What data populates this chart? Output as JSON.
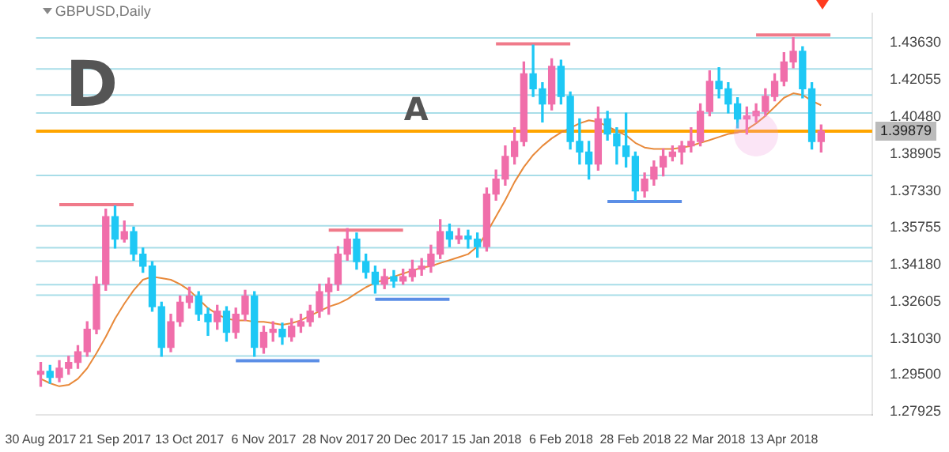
{
  "chart_data": {
    "type": "candlestick",
    "title": "GBPUSD,Daily",
    "annotations": [
      "D",
      "A"
    ],
    "categories": [
      "30 Aug 2017",
      null,
      null,
      null,
      null,
      null,
      null,
      null,
      "21 Sep 2017",
      null,
      null,
      null,
      null,
      null,
      null,
      null,
      "13 Oct 2017",
      null,
      null,
      null,
      null,
      null,
      null,
      null,
      "6 Nov 2017",
      null,
      null,
      null,
      null,
      null,
      null,
      null,
      "28 Nov 2017",
      null,
      null,
      null,
      null,
      null,
      null,
      null,
      "20 Dec 2017",
      null,
      null,
      null,
      null,
      null,
      null,
      null,
      "15 Jan 2018",
      null,
      null,
      null,
      null,
      null,
      null,
      null,
      "6 Feb 2018",
      null,
      null,
      null,
      null,
      null,
      null,
      null,
      "28 Feb 2018",
      null,
      null,
      null,
      null,
      null,
      null,
      null,
      "22 Mar 2018",
      null,
      null,
      null,
      null,
      null,
      null,
      null,
      "13 Apr 2018",
      null,
      null,
      null,
      null,
      null,
      null,
      null,
      null,
      null
    ],
    "ohlc": [
      [
        1.2952,
        1.3003,
        1.2901,
        1.2965
      ],
      [
        1.2965,
        1.299,
        1.2914,
        1.2939
      ],
      [
        1.2939,
        1.301,
        1.292,
        1.2978
      ],
      [
        1.2978,
        1.3029,
        1.2952,
        1.3003
      ],
      [
        1.3003,
        1.3074,
        1.2978,
        1.3048
      ],
      [
        1.3048,
        1.3176,
        1.3029,
        1.3144
      ],
      [
        1.3144,
        1.3368,
        1.3125,
        1.3336
      ],
      [
        1.3336,
        1.3656,
        1.331,
        1.3624
      ],
      [
        1.3624,
        1.3669,
        1.349,
        1.3528
      ],
      [
        1.3528,
        1.3605,
        1.3515,
        1.356
      ],
      [
        1.356,
        1.3579,
        1.3438,
        1.3464
      ],
      [
        1.3464,
        1.349,
        1.3387,
        1.3413
      ],
      [
        1.3413,
        1.3432,
        1.3221,
        1.324
      ],
      [
        1.324,
        1.3259,
        1.3029,
        1.3067
      ],
      [
        1.3067,
        1.3208,
        1.3048,
        1.3176
      ],
      [
        1.3176,
        1.3285,
        1.3157,
        1.3259
      ],
      [
        1.3259,
        1.3323,
        1.3234,
        1.3285
      ],
      [
        1.3285,
        1.3304,
        1.3182,
        1.3208
      ],
      [
        1.3208,
        1.3234,
        1.3118,
        1.3176
      ],
      [
        1.3176,
        1.3246,
        1.3144,
        1.3221
      ],
      [
        1.3221,
        1.324,
        1.3093,
        1.3131
      ],
      [
        1.3131,
        1.3234,
        1.3106,
        1.3208
      ],
      [
        1.3208,
        1.331,
        1.3182,
        1.3285
      ],
      [
        1.3285,
        1.3304,
        1.3029,
        1.3067
      ],
      [
        1.3067,
        1.3157,
        1.3042,
        1.3131
      ],
      [
        1.3131,
        1.3176,
        1.3093,
        1.3144
      ],
      [
        1.3144,
        1.317,
        1.308,
        1.3112
      ],
      [
        1.3112,
        1.3189,
        1.3093,
        1.3157
      ],
      [
        1.3157,
        1.3208,
        1.3131,
        1.3176
      ],
      [
        1.3176,
        1.3246,
        1.3157,
        1.3221
      ],
      [
        1.3221,
        1.3336,
        1.3195,
        1.3304
      ],
      [
        1.3304,
        1.3362,
        1.3208,
        1.3336
      ],
      [
        1.3336,
        1.3496,
        1.331,
        1.3464
      ],
      [
        1.3464,
        1.3573,
        1.3438,
        1.3528
      ],
      [
        1.3528,
        1.3554,
        1.34,
        1.3432
      ],
      [
        1.3432,
        1.3464,
        1.3362,
        1.3387
      ],
      [
        1.3387,
        1.3413,
        1.3298,
        1.3336
      ],
      [
        1.3336,
        1.34,
        1.3317,
        1.3368
      ],
      [
        1.3368,
        1.3394,
        1.3323,
        1.3349
      ],
      [
        1.3349,
        1.34,
        1.3336,
        1.3368
      ],
      [
        1.3368,
        1.3438,
        1.3349,
        1.34
      ],
      [
        1.34,
        1.3445,
        1.3374,
        1.3413
      ],
      [
        1.3413,
        1.3502,
        1.3387,
        1.3464
      ],
      [
        1.3464,
        1.3611,
        1.3445,
        1.356
      ],
      [
        1.356,
        1.3592,
        1.3496,
        1.3528
      ],
      [
        1.3528,
        1.3573,
        1.3509,
        1.3541
      ],
      [
        1.3541,
        1.3566,
        1.349,
        1.3528
      ],
      [
        1.3528,
        1.3554,
        1.3451,
        1.3496
      ],
      [
        1.3496,
        1.3746,
        1.3477,
        1.372
      ],
      [
        1.372,
        1.3822,
        1.3694,
        1.3784
      ],
      [
        1.3784,
        1.3925,
        1.3758,
        1.388
      ],
      [
        1.388,
        1.4002,
        1.3848,
        1.3944
      ],
      [
        1.3944,
        1.4283,
        1.3925,
        1.4232
      ],
      [
        1.4232,
        1.4354,
        1.4136,
        1.4168
      ],
      [
        1.4168,
        1.4194,
        1.4027,
        1.4104
      ],
      [
        1.4104,
        1.4296,
        1.4078,
        1.4264
      ],
      [
        1.4264,
        1.429,
        1.4104,
        1.4136
      ],
      [
        1.4136,
        1.4155,
        1.3912,
        1.3944
      ],
      [
        1.3944,
        1.404,
        1.3848,
        1.3899
      ],
      [
        1.3899,
        1.3944,
        1.3784,
        1.3848
      ],
      [
        1.3848,
        1.4091,
        1.3822,
        1.404
      ],
      [
        1.404,
        1.4072,
        1.395,
        1.3976
      ],
      [
        1.3976,
        1.4002,
        1.3848,
        1.3925
      ],
      [
        1.3925,
        1.4065,
        1.3835,
        1.388
      ],
      [
        1.388,
        1.3899,
        1.3694,
        1.3733
      ],
      [
        1.3733,
        1.381,
        1.3707,
        1.3784
      ],
      [
        1.3784,
        1.3861,
        1.3758,
        1.3835
      ],
      [
        1.3835,
        1.3912,
        1.3797,
        1.388
      ],
      [
        1.388,
        1.3925,
        1.3861,
        1.3899
      ],
      [
        1.3899,
        1.3944,
        1.3848,
        1.3925
      ],
      [
        1.3925,
        1.4002,
        1.3899,
        1.3944
      ],
      [
        1.3944,
        1.4104,
        1.3925,
        1.4072
      ],
      [
        1.4072,
        1.4245,
        1.4053,
        1.42
      ],
      [
        1.42,
        1.4258,
        1.413,
        1.4168
      ],
      [
        1.4168,
        1.4194,
        1.4066,
        1.4104
      ],
      [
        1.4104,
        1.413,
        1.4002,
        1.404
      ],
      [
        1.404,
        1.4091,
        1.3976,
        1.4053
      ],
      [
        1.4053,
        1.4104,
        1.4027,
        1.4072
      ],
      [
        1.4072,
        1.4168,
        1.4053,
        1.4136
      ],
      [
        1.4136,
        1.4232,
        1.4117,
        1.42
      ],
      [
        1.42,
        1.4322,
        1.4181,
        1.4283
      ],
      [
        1.4283,
        1.4386,
        1.4258,
        1.4328
      ],
      [
        1.4328,
        1.4347,
        1.413,
        1.4168
      ],
      [
        1.4168,
        1.4194,
        1.3912,
        1.3944
      ],
      [
        1.3944,
        1.4014,
        1.3899,
        1.3988
      ],
      null,
      null,
      null,
      null,
      null
    ],
    "colors": [
      "#f06eaa",
      "#1ec8f5",
      "#f06eaa",
      "#f06eaa",
      "#f06eaa",
      "#f06eaa",
      "#f06eaa",
      "#f06eaa",
      "#1ec8f5",
      "#f06eaa",
      "#1ec8f5",
      "#1ec8f5",
      "#1ec8f5",
      "#1ec8f5",
      "#f06eaa",
      "#f06eaa",
      "#f06eaa",
      "#1ec8f5",
      "#1ec8f5",
      "#f06eaa",
      "#1ec8f5",
      "#f06eaa",
      "#f06eaa",
      "#1ec8f5",
      "#f06eaa",
      "#f06eaa",
      "#1ec8f5",
      "#f06eaa",
      "#f06eaa",
      "#f06eaa",
      "#f06eaa",
      "#f06eaa",
      "#f06eaa",
      "#f06eaa",
      "#1ec8f5",
      "#1ec8f5",
      "#1ec8f5",
      "#f06eaa",
      "#1ec8f5",
      "#f06eaa",
      "#f06eaa",
      "#f06eaa",
      "#f06eaa",
      "#f06eaa",
      "#1ec8f5",
      "#f06eaa",
      "#1ec8f5",
      "#1ec8f5",
      "#f06eaa",
      "#f06eaa",
      "#f06eaa",
      "#f06eaa",
      "#f06eaa",
      "#1ec8f5",
      "#1ec8f5",
      "#f06eaa",
      "#1ec8f5",
      "#1ec8f5",
      "#1ec8f5",
      "#1ec8f5",
      "#f06eaa",
      "#1ec8f5",
      "#1ec8f5",
      "#1ec8f5",
      "#1ec8f5",
      "#f06eaa",
      "#f06eaa",
      "#f06eaa",
      "#f06eaa",
      "#f06eaa",
      "#f06eaa",
      "#f06eaa",
      "#f06eaa",
      "#1ec8f5",
      "#1ec8f5",
      "#1ec8f5",
      "#f06eaa",
      "#f06eaa",
      "#f06eaa",
      "#f06eaa",
      "#f06eaa",
      "#f06eaa",
      "#1ec8f5",
      "#1ec8f5",
      "#f06eaa",
      null,
      null,
      null,
      null,
      null
    ],
    "series": [
      {
        "type": "line",
        "color": "#e8893a",
        "values": [
          1.2933,
          1.2914,
          1.2901,
          1.2907,
          1.2933,
          1.2978,
          1.3042,
          1.3112,
          1.3189,
          1.3253,
          1.331,
          1.3355,
          1.3368,
          1.3362,
          1.3355,
          1.3336,
          1.331,
          1.3272,
          1.3234,
          1.3208,
          1.3189,
          1.3182,
          1.3182,
          1.3176,
          1.3176,
          1.317,
          1.3163,
          1.317,
          1.3182,
          1.3202,
          1.3221,
          1.324,
          1.3253,
          1.3272,
          1.3298,
          1.3323,
          1.3342,
          1.3355,
          1.3368,
          1.3381,
          1.3394,
          1.3406,
          1.3413,
          1.3426,
          1.3438,
          1.3451,
          1.3464,
          1.3496,
          1.3554,
          1.3624,
          1.3694,
          1.3771,
          1.3835,
          1.3886,
          1.3925,
          1.3957,
          1.3982,
          1.4002,
          1.4021,
          1.4034,
          1.4027,
          1.4008,
          1.3989,
          1.397,
          1.3938,
          1.3918,
          1.3912,
          1.3912,
          1.3912,
          1.3918,
          1.3925,
          1.3938,
          1.395,
          1.3963,
          1.3976,
          1.3982,
          1.3995,
          1.4021,
          1.4053,
          1.4091,
          1.413,
          1.4149,
          1.4142,
          1.4117,
          1.4098,
          null,
          null,
          null,
          null,
          null
        ]
      },
      {
        "type": "line",
        "color": "#f07a8a",
        "values": [
          null,
          null,
          1.3675,
          1.3675,
          1.3675,
          1.3675,
          1.3675,
          1.3675,
          1.3675,
          1.3675,
          1.3675,
          null,
          null,
          null,
          null,
          null,
          null,
          null,
          null,
          null,
          null,
          null,
          null,
          null,
          null,
          null,
          null,
          null,
          null,
          null,
          null,
          null,
          null,
          null,
          null,
          null,
          null,
          null,
          null,
          null,
          null,
          null,
          null,
          null,
          null,
          null,
          null,
          null,
          null,
          null,
          null,
          null,
          null,
          null,
          null,
          null,
          null,
          null,
          null,
          null,
          null,
          null,
          null,
          null,
          null,
          null,
          null,
          null,
          null,
          null,
          null,
          null,
          null,
          null,
          null,
          null,
          null,
          null,
          null,
          null,
          null,
          null,
          null,
          null,
          null,
          null,
          null,
          null,
          null,
          null
        ]
      },
      {
        "type": "line",
        "color": "#f07a8a",
        "values": [
          null,
          null,
          null,
          null,
          null,
          null,
          null,
          null,
          null,
          null,
          null,
          null,
          null,
          null,
          null,
          null,
          null,
          null,
          null,
          null,
          null,
          null,
          null,
          null,
          null,
          null,
          null,
          null,
          null,
          null,
          null,
          1.3566,
          1.3566,
          1.3566,
          1.3566,
          1.3566,
          1.3566,
          1.3566,
          1.3566,
          1.3566,
          null,
          null,
          null,
          null,
          null,
          null,
          null,
          null,
          null,
          null,
          null,
          null,
          null,
          null,
          null,
          null,
          null,
          null,
          null,
          null,
          null,
          null,
          null,
          null,
          null,
          null,
          null,
          null,
          null,
          null,
          null,
          null,
          null,
          null,
          null,
          null,
          null,
          null,
          null,
          null,
          null,
          null,
          null,
          null,
          null,
          null,
          null,
          null,
          null,
          null
        ]
      },
      {
        "type": "line",
        "color": "#f07a8a",
        "values": [
          null,
          null,
          null,
          null,
          null,
          null,
          null,
          null,
          null,
          null,
          null,
          null,
          null,
          null,
          null,
          null,
          null,
          null,
          null,
          null,
          null,
          null,
          null,
          null,
          null,
          null,
          null,
          null,
          null,
          null,
          null,
          null,
          null,
          null,
          null,
          null,
          null,
          null,
          null,
          null,
          null,
          null,
          null,
          null,
          null,
          null,
          null,
          null,
          null,
          1.436,
          1.436,
          1.436,
          1.436,
          1.436,
          1.436,
          1.436,
          1.436,
          1.436,
          null,
          null,
          null,
          null,
          null,
          null,
          null,
          null,
          null,
          null,
          null,
          null,
          null,
          null,
          null,
          null,
          null,
          null,
          null,
          null,
          null,
          null,
          null,
          null,
          null,
          null,
          null,
          null,
          null,
          null,
          null,
          null
        ]
      },
      {
        "type": "line",
        "color": "#f07a8a",
        "values": [
          null,
          null,
          null,
          null,
          null,
          null,
          null,
          null,
          null,
          null,
          null,
          null,
          null,
          null,
          null,
          null,
          null,
          null,
          null,
          null,
          null,
          null,
          null,
          null,
          null,
          null,
          null,
          null,
          null,
          null,
          null,
          null,
          null,
          null,
          null,
          null,
          null,
          null,
          null,
          null,
          null,
          null,
          null,
          null,
          null,
          null,
          null,
          null,
          null,
          null,
          null,
          null,
          null,
          null,
          null,
          null,
          null,
          null,
          null,
          null,
          null,
          null,
          null,
          null,
          null,
          null,
          null,
          null,
          null,
          null,
          null,
          null,
          null,
          null,
          null,
          null,
          null,
          1.4398,
          1.4398,
          1.4398,
          1.4398,
          1.4398,
          1.4398,
          1.4398,
          1.4398,
          1.4398,
          null,
          null,
          null,
          null
        ]
      },
      {
        "type": "line",
        "color": "#5b8ee6",
        "values": [
          null,
          null,
          null,
          null,
          null,
          null,
          null,
          null,
          null,
          null,
          null,
          null,
          null,
          null,
          null,
          null,
          null,
          null,
          null,
          null,
          null,
          1.301,
          1.301,
          1.301,
          1.301,
          1.301,
          1.301,
          1.301,
          1.301,
          1.301,
          1.301,
          null,
          null,
          null,
          null,
          null,
          null,
          null,
          null,
          null,
          null,
          null,
          null,
          null,
          null,
          null,
          null,
          null,
          null,
          null,
          null,
          null,
          null,
          null,
          null,
          null,
          null,
          null,
          null,
          null,
          null,
          null,
          null,
          null,
          null,
          null,
          null,
          null,
          null,
          null,
          null,
          null,
          null,
          null,
          null,
          null,
          null,
          null,
          null,
          null,
          null,
          null,
          null,
          null,
          null,
          null,
          null,
          null,
          null,
          null
        ]
      },
      {
        "type": "line",
        "color": "#5b8ee6",
        "values": [
          null,
          null,
          null,
          null,
          null,
          null,
          null,
          null,
          null,
          null,
          null,
          null,
          null,
          null,
          null,
          null,
          null,
          null,
          null,
          null,
          null,
          null,
          null,
          null,
          null,
          null,
          null,
          null,
          null,
          null,
          null,
          null,
          null,
          null,
          null,
          null,
          1.3272,
          1.3272,
          1.3272,
          1.3272,
          1.3272,
          1.3272,
          1.3272,
          1.3272,
          1.3272,
          null,
          null,
          null,
          null,
          null,
          null,
          null,
          null,
          null,
          null,
          null,
          null,
          null,
          null,
          null,
          null,
          null,
          null,
          null,
          null,
          null,
          null,
          null,
          null,
          null,
          null,
          null,
          null,
          null,
          null,
          null,
          null,
          null,
          null,
          null,
          null,
          null,
          null,
          null,
          null,
          null,
          null,
          null,
          null,
          null
        ]
      },
      {
        "type": "line",
        "color": "#5b8ee6",
        "values": [
          null,
          null,
          null,
          null,
          null,
          null,
          null,
          null,
          null,
          null,
          null,
          null,
          null,
          null,
          null,
          null,
          null,
          null,
          null,
          null,
          null,
          null,
          null,
          null,
          null,
          null,
          null,
          null,
          null,
          null,
          null,
          null,
          null,
          null,
          null,
          null,
          null,
          null,
          null,
          null,
          null,
          null,
          null,
          null,
          null,
          null,
          null,
          null,
          null,
          null,
          null,
          null,
          null,
          null,
          null,
          null,
          null,
          null,
          null,
          null,
          null,
          1.3688,
          1.3688,
          1.3688,
          1.3688,
          1.3688,
          1.3688,
          1.3688,
          1.3688,
          1.3688,
          null,
          null,
          null,
          null,
          null,
          null,
          null,
          null,
          null,
          null,
          null,
          null,
          null,
          null,
          null,
          null,
          null,
          null,
          null,
          null
        ]
      }
    ],
    "ylim": [
      1.278,
      1.449
    ],
    "yticks": [
      {
        "value": 1.4363,
        "label": "1.43630"
      },
      1.42055,
      {
        "value": 1.4048,
        "label": "1.40480"
      },
      1.38905,
      {
        "value": 1.3733,
        "label": "1.37330"
      },
      1.35755,
      {
        "value": 1.3418,
        "label": "1.34180"
      },
      1.32605,
      {
        "value": 1.3103,
        "label": "1.31030"
      },
      {
        "value": 1.295,
        "label": "1.29500"
      },
      1.27925
    ],
    "ref_lines": [
      {
        "axis": "y",
        "value": 1.4385,
        "color": "#a8dde8"
      },
      {
        "axis": "y",
        "value": 1.4253,
        "color": "#a8dde8"
      },
      {
        "axis": "y",
        "value": 1.4142,
        "color": "#a8dde8"
      },
      {
        "axis": "y",
        "value": 1.4065,
        "color": "#a8dde8"
      },
      {
        "axis": "y",
        "value": 1.3799,
        "color": "#a8dde8"
      },
      {
        "axis": "y",
        "value": 1.3585,
        "color": "#a8dde8"
      },
      {
        "axis": "y",
        "value": 1.3491,
        "color": "#a8dde8"
      },
      {
        "axis": "y",
        "value": 1.3434,
        "color": "#a8dde8"
      },
      {
        "axis": "y",
        "value": 1.3334,
        "color": "#a8dde8"
      },
      {
        "axis": "y",
        "value": 1.3289,
        "color": "#a8dde8"
      },
      {
        "axis": "y",
        "value": 1.303,
        "color": "#a8dde8"
      },
      {
        "axis": "y",
        "value": 1.39879,
        "label": "1.39879",
        "color": "#ffa500"
      }
    ],
    "grid": false,
    "legend": false
  }
}
